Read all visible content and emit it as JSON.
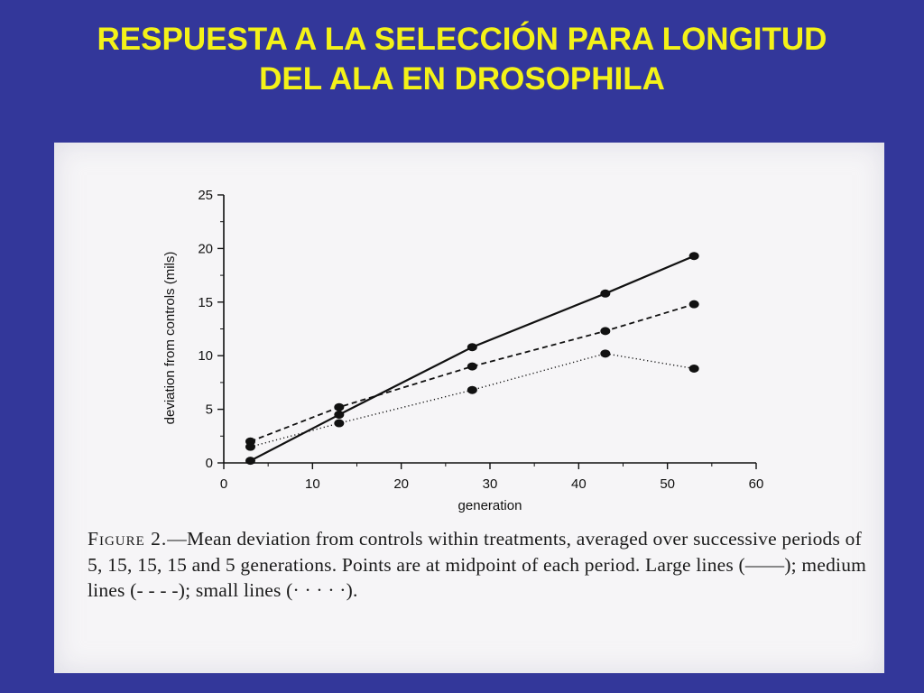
{
  "slide": {
    "title_line1": "RESPUESTA A LA SELECCIÓN PARA LONGITUD",
    "title_line2": "DEL ALA EN DROSOPHILA",
    "background": "#33379a",
    "title_color": "#f4f218"
  },
  "caption": {
    "label": "Figure 2.",
    "text": "—Mean deviation from controls within treatments, averaged over successive periods of 5, 15, 15, 15 and 5 generations. Points are at midpoint of each period. Large lines (——); medium lines (- - - -); small lines (· · · · ·)."
  },
  "chart_data": {
    "type": "line",
    "xlabel": "generation",
    "ylabel": "deviation from controls (mils)",
    "xlim": [
      0,
      60
    ],
    "ylim": [
      0,
      25
    ],
    "x_ticks": [
      "0",
      "10",
      "20",
      "30",
      "40",
      "50",
      "60"
    ],
    "y_ticks": [
      "0",
      "5",
      "10",
      "15",
      "20",
      "25"
    ],
    "x": [
      3,
      13,
      28,
      43,
      53
    ],
    "series": [
      {
        "name": "Large lines",
        "style": "solid",
        "values": [
          0.2,
          4.5,
          10.8,
          15.8,
          19.3
        ]
      },
      {
        "name": "medium lines",
        "style": "dashed",
        "values": [
          2.0,
          5.2,
          9.0,
          12.3,
          14.8
        ]
      },
      {
        "name": "small lines",
        "style": "dotted",
        "values": [
          1.5,
          3.7,
          6.8,
          10.2,
          8.8
        ]
      }
    ]
  }
}
